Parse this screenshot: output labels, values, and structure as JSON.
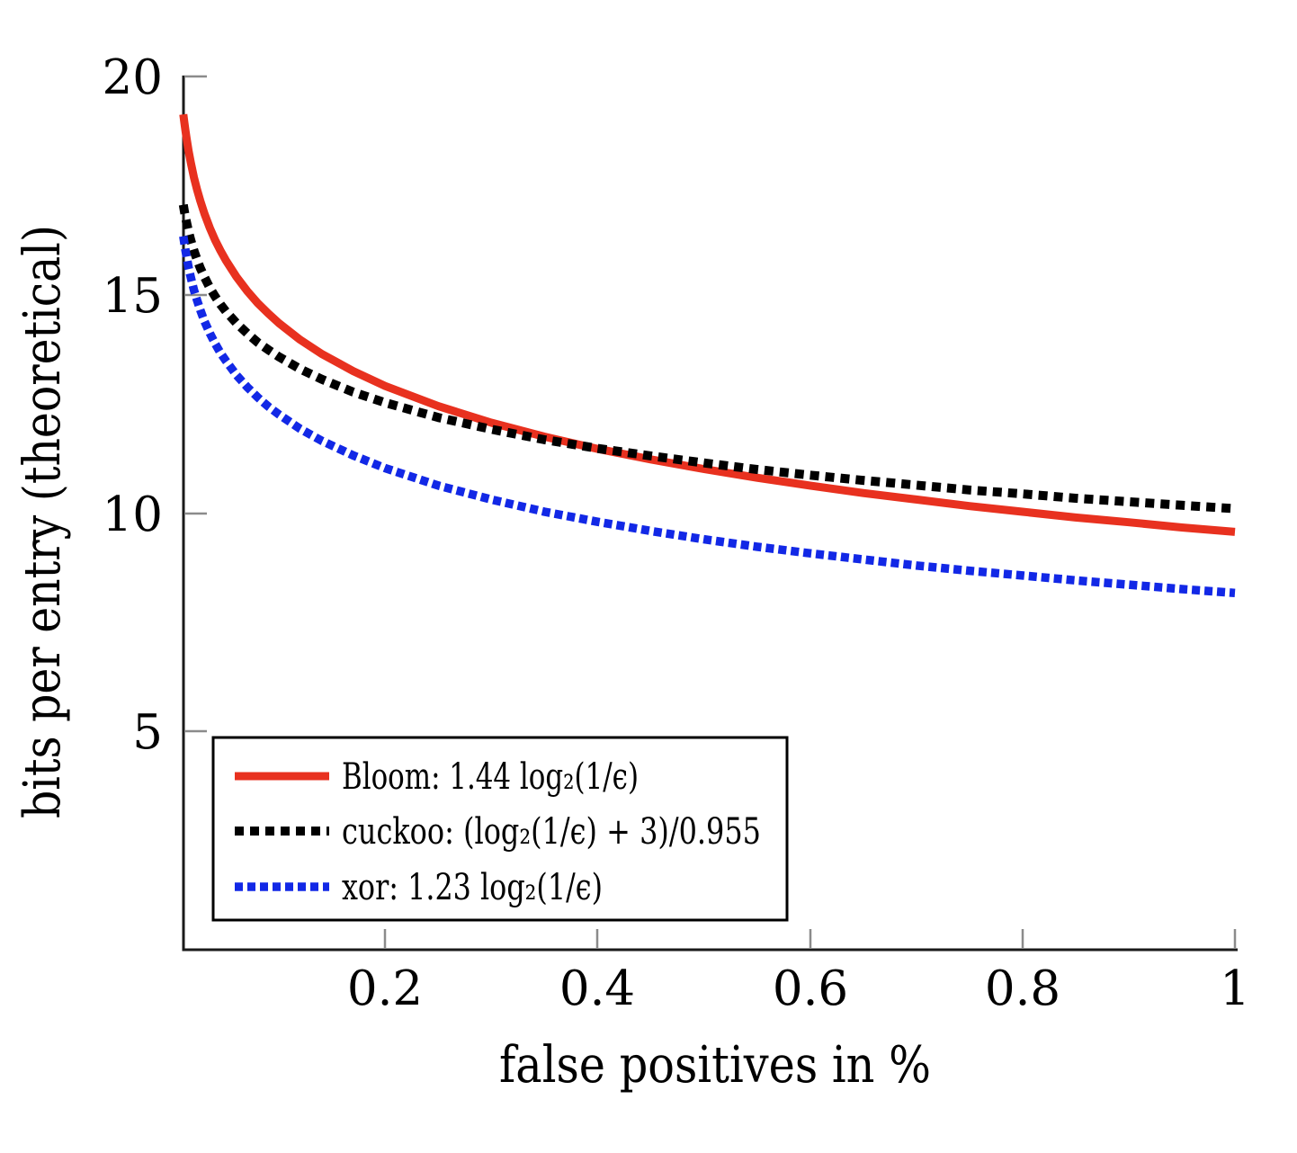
{
  "figure": {
    "background": "#ffffff",
    "axis_color": "#1a1a1a",
    "tick_color": "#8b8b8b"
  },
  "chart_data": {
    "type": "line",
    "title": "",
    "xlabel": "false positives in %",
    "ylabel": "bits per entry (theoretical)",
    "xlim": [
      0.01,
      1
    ],
    "ylim": [
      0,
      20
    ],
    "grid": false,
    "legend_position": "lower left",
    "x_tick_values": [
      0.2,
      0.4,
      0.6,
      0.8,
      1
    ],
    "x_tick_labels": [
      "0.2",
      "0.4",
      "0.6",
      "0.8",
      "1"
    ],
    "y_tick_values": [
      20,
      15,
      10,
      5
    ],
    "y_tick_labels": [
      "20",
      "15",
      "10",
      "5"
    ],
    "x": [
      0.01,
      0.011,
      0.012,
      0.013,
      0.015,
      0.017,
      0.02,
      0.023,
      0.026,
      0.03,
      0.035,
      0.04,
      0.045,
      0.05,
      0.06,
      0.07,
      0.08,
      0.09,
      0.1,
      0.12,
      0.14,
      0.17,
      0.2,
      0.25,
      0.3,
      0.35,
      0.4,
      0.45,
      0.5,
      0.55,
      0.6,
      0.65,
      0.7,
      0.75,
      0.8,
      0.85,
      0.9,
      0.95,
      1.0
    ],
    "series": [
      {
        "id": "bloom",
        "label": "Bloom: 1.44 log₂(1/ϵ)",
        "formula": "1.44*log2(1/eps)",
        "color": "#e8311f",
        "style": "solid",
        "dash": "",
        "stroke_width": 9,
        "values": [
          19.13,
          18.94,
          18.76,
          18.59,
          18.29,
          18.03,
          17.69,
          17.4,
          17.15,
          16.85,
          16.53,
          16.25,
          16.01,
          15.79,
          15.41,
          15.09,
          14.81,
          14.57,
          14.35,
          13.97,
          13.65,
          13.25,
          12.91,
          12.45,
          12.07,
          11.75,
          11.47,
          11.23,
          11.01,
          10.81,
          10.63,
          10.46,
          10.31,
          10.16,
          10.03,
          9.9,
          9.79,
          9.67,
          9.57
        ]
      },
      {
        "id": "cuckoo",
        "label": "cuckoo: (log₂(1/ϵ) + 3)/0.955",
        "formula": "(log2(1/eps)+3)/0.955",
        "color": "#000000",
        "style": "dotted",
        "dash": "10 7",
        "stroke_width": 10,
        "values": [
          17.06,
          16.91,
          16.78,
          16.66,
          16.44,
          16.25,
          16.01,
          15.8,
          15.61,
          15.4,
          15.16,
          14.96,
          14.78,
          14.62,
          14.35,
          14.12,
          13.91,
          13.74,
          13.58,
          13.3,
          13.07,
          12.77,
          12.53,
          12.19,
          11.92,
          11.68,
          11.48,
          11.31,
          11.15,
          11.0,
          10.87,
          10.75,
          10.64,
          10.53,
          10.44,
          10.34,
          10.26,
          10.18,
          10.1
        ]
      },
      {
        "id": "xor",
        "label": "xor: 1.23 log₂(1/ϵ)",
        "formula": "1.23*log2(1/eps)",
        "color": "#1228e6",
        "style": "dotted",
        "dash": "9 5",
        "stroke_width": 9.5,
        "values": [
          16.34,
          16.18,
          16.02,
          15.88,
          15.62,
          15.4,
          15.11,
          14.87,
          14.65,
          14.39,
          14.12,
          13.88,
          13.67,
          13.49,
          13.16,
          12.89,
          12.65,
          12.44,
          12.26,
          11.93,
          11.66,
          11.32,
          11.03,
          10.63,
          10.31,
          10.03,
          9.8,
          9.59,
          9.4,
          9.23,
          9.08,
          8.94,
          8.8,
          8.68,
          8.57,
          8.46,
          8.36,
          8.26,
          8.17
        ]
      }
    ]
  }
}
